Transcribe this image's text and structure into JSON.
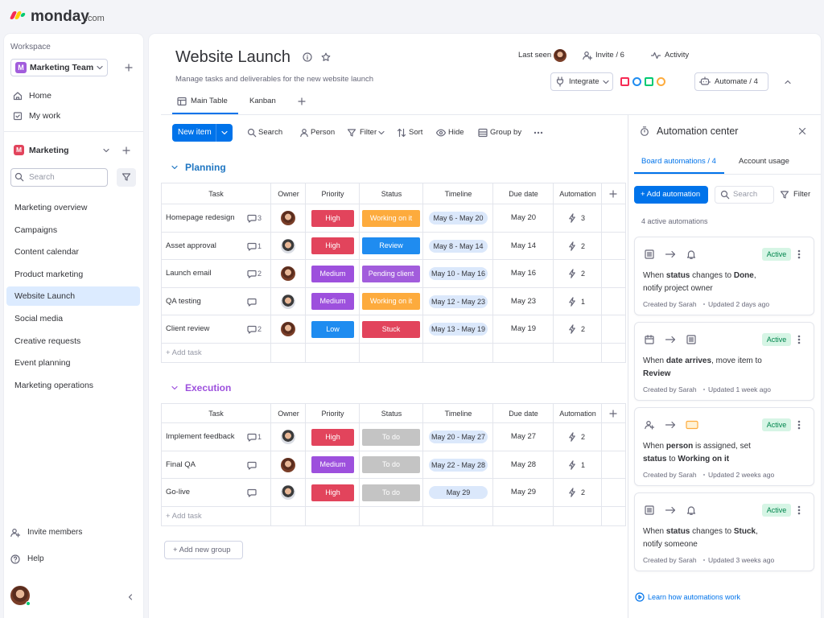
{
  "brand": "monday",
  "brand_suffix": ".com",
  "sidebar": {
    "workspace_label": "Workspace",
    "workspace_initial": "M",
    "workspace": "Marketing Team",
    "nav": [
      "Home",
      "My work"
    ],
    "folder_initial": "M",
    "folder": "Marketing",
    "search_placeholder": "Search",
    "boards": [
      "Marketing overview",
      "Campaigns",
      "Content calendar",
      "Product marketing",
      "Website Launch",
      "Social media",
      "Creative requests",
      "Event planning",
      "Marketing operations"
    ],
    "active_board": 4,
    "footer": [
      "Invite members",
      "Help"
    ]
  },
  "header": {
    "title": "Website Launch",
    "subtitle": "Manage tasks and deliverables for the new website launch",
    "last_seen": "Last seen",
    "invite": "Invite / 6",
    "activity": "Activity",
    "integrate": "Integrate",
    "automate": "Automate / 4"
  },
  "tabs": [
    "Main Table",
    "Kanban"
  ],
  "toolbar": {
    "new_item": "New item",
    "actions": [
      "Search",
      "Person",
      "Filter",
      "Sort",
      "Hide",
      "Group by"
    ]
  },
  "columns": [
    "Task",
    "Owner",
    "Priority",
    "Status",
    "Timeline",
    "Due date",
    "Automation"
  ],
  "label_colors": {
    "High": "#e2445c",
    "Medium": "#9d50dd",
    "Low": "#1f8cf0",
    "Working on it": "#fdab3d",
    "Review": "#1f8cf0",
    "Pending client": "#a25ddc",
    "Stuck": "#e2445c",
    "To do": "#c4c4c4"
  },
  "groups": [
    {
      "name": "Planning",
      "color": "#1f76c2",
      "rows": [
        {
          "task": "Homepage redesign",
          "comments": 3,
          "priority": "High",
          "status": "Working on it",
          "timeline": "May 6 - May 20",
          "due": "May 20",
          "automations": 3
        },
        {
          "task": "Asset approval",
          "comments": 1,
          "priority": "High",
          "status": "Review",
          "timeline": "May 8 - May 14",
          "due": "May 14",
          "automations": 2
        },
        {
          "task": "Launch email",
          "comments": 2,
          "priority": "Medium",
          "status": "Pending client",
          "timeline": "May 10 - May 16",
          "due": "May 16",
          "automations": 2
        },
        {
          "task": "QA testing",
          "comments": null,
          "priority": "Medium",
          "status": "Working on it",
          "timeline": "May 12 - May 23",
          "due": "May 23",
          "automations": 1
        },
        {
          "task": "Client review",
          "comments": 2,
          "priority": "Low",
          "status": "Stuck",
          "timeline": "May 13 - May 19",
          "due": "May 19",
          "automations": 2
        }
      ],
      "add_task": "+ Add task"
    },
    {
      "name": "Execution",
      "color": "#9d50dd",
      "rows": [
        {
          "task": "Implement feedback",
          "comments": 1,
          "priority": "High",
          "status": "To do",
          "timeline": "May 20 - May 27",
          "due": "May 27",
          "automations": 2
        },
        {
          "task": "Final QA",
          "comments": null,
          "priority": "Medium",
          "status": "To do",
          "timeline": "May 22 - May 28",
          "due": "May 28",
          "automations": 1
        },
        {
          "task": "Go-live",
          "comments": null,
          "priority": "High",
          "status": "To do",
          "timeline": "May 29",
          "due": "May 29",
          "automations": 2
        }
      ],
      "add_task": "+ Add task"
    }
  ],
  "add_group": "+ Add new group",
  "automation_center": {
    "title": "Automation center",
    "tabs": [
      "Board automations / 4",
      "Account usage"
    ],
    "add": "+ Add automation",
    "search": "Search",
    "filter": "Filter",
    "count": "4 active automations",
    "automations": [
      {
        "parts": [
          "When ",
          "status",
          " changes to ",
          "Done",
          ", notify project owner"
        ],
        "state": "Active",
        "created": "Created by Sarah",
        "updated": "Updated 2 days ago"
      },
      {
        "parts": [
          "When ",
          "date arrives",
          ", move item to ",
          "Review"
        ],
        "state": "Active",
        "created": "Created by Sarah",
        "updated": "Updated 1 week ago"
      },
      {
        "parts": [
          "When ",
          "person",
          " is assigned, set ",
          "status",
          " to ",
          "Working on it"
        ],
        "state": "Active",
        "created": "Created by Sarah",
        "updated": "Updated 2 weeks ago"
      },
      {
        "parts": [
          "When ",
          "status",
          " changes to ",
          "Stuck",
          ", notify someone"
        ],
        "state": "Active",
        "created": "Created by Sarah",
        "updated": "Updated 3 weeks ago"
      }
    ],
    "learn": "Learn how automations work"
  }
}
